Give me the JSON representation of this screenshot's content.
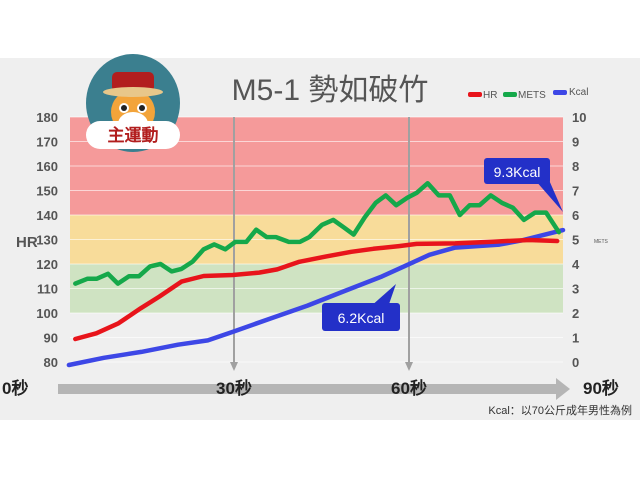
{
  "chart_data": {
    "type": "line",
    "title": "M5-1  勢如破竹",
    "legend": {
      "position": "top-right",
      "entries": [
        {
          "label": "HR",
          "color": "#e8141b"
        },
        {
          "label": "METS",
          "color": "#15a84a"
        },
        {
          "label": "Kcal",
          "color": "#3d47e6"
        }
      ]
    },
    "xaxis": {
      "range": [
        0,
        90
      ],
      "ticks": [
        {
          "value": 0,
          "label": "0秒"
        },
        {
          "value": 30,
          "label": "30秒"
        },
        {
          "value": 60,
          "label": "60秒"
        },
        {
          "value": 90,
          "label": "90秒"
        }
      ]
    },
    "yaxis_left": {
      "label": "HR",
      "range": [
        80,
        180
      ],
      "ticks": [
        "80",
        "90",
        "100",
        "110",
        "120",
        "130",
        "140",
        "150",
        "160",
        "170",
        "180"
      ]
    },
    "yaxis_right": {
      "label": "METS",
      "range": [
        0,
        10
      ],
      "ticks": [
        "0",
        "1",
        "2",
        "3",
        "4",
        "5",
        "6",
        "7",
        "8",
        "9",
        "10"
      ]
    },
    "zones": [
      {
        "from": 140,
        "to": 180,
        "color": "#f59a9a"
      },
      {
        "from": 120,
        "to": 140,
        "color": "#f8dc9a"
      },
      {
        "from": 100,
        "to": 120,
        "color": "#cfe3c2"
      }
    ],
    "grid": true,
    "series": [
      {
        "name": "HR",
        "axis": "left",
        "color": "#e8141b",
        "x": [
          2.8,
          6.4,
          10.2,
          14.0,
          17.2,
          21.0,
          24.8,
          29.8,
          34.3,
          37.4,
          41.2,
          45.7,
          50.1,
          53.9,
          58.3,
          61.3,
          67.9,
          74.3,
          80.6,
          85.4
        ],
        "y": [
          89.4,
          91.7,
          95.8,
          101.9,
          106.7,
          112.8,
          115.1,
          115.5,
          116.5,
          117.8,
          120.9,
          123.0,
          125.0,
          126.2,
          127.3,
          128.2,
          128.4,
          129.1,
          129.8,
          129.4
        ]
      },
      {
        "name": "METS",
        "axis": "right",
        "color": "#15a84a",
        "x": [
          2.8,
          4.9,
          6.5,
          8.4,
          10.1,
          12.0,
          13.7,
          15.6,
          17.4,
          19.3,
          21.0,
          22.9,
          24.8,
          26.6,
          28.5,
          30.2,
          32.1,
          33.8,
          35.6,
          37.2,
          39.4,
          41.3,
          42.9,
          45.1,
          47.0,
          48.8,
          50.5,
          52.4,
          54.3,
          56.0,
          57.8,
          59.7,
          61.3,
          63.2,
          65.1,
          67.0,
          68.7,
          70.4,
          72.1,
          74.0,
          75.9,
          77.8,
          79.7,
          81.6,
          83.5,
          85.7
        ],
        "y": [
          3.2,
          3.4,
          3.4,
          3.6,
          3.2,
          3.5,
          3.5,
          3.9,
          4.0,
          3.7,
          3.8,
          4.1,
          4.6,
          4.8,
          4.6,
          4.9,
          4.9,
          5.4,
          5.1,
          5.1,
          4.9,
          4.9,
          5.1,
          5.6,
          5.8,
          5.5,
          5.2,
          5.9,
          6.5,
          6.8,
          6.4,
          6.7,
          6.9,
          7.3,
          6.8,
          6.8,
          6.0,
          6.4,
          6.4,
          6.8,
          6.5,
          6.3,
          5.8,
          6.1,
          6.1,
          5.3
        ]
      },
      {
        "name": "Kcal",
        "axis": "none",
        "color": "#3d47e6",
        "x": [
          1.7,
          7.7,
          14.1,
          20.4,
          25.5,
          29.9,
          36.2,
          42.6,
          48.9,
          55.3,
          59.7,
          63.5,
          67.9,
          75.5,
          79.4,
          86.4
        ],
        "y": [
          0,
          0.5,
          0.9,
          1.4,
          1.7,
          2.3,
          3.2,
          4.1,
          5.1,
          6.1,
          6.9,
          7.6,
          8.1,
          8.3,
          8.6,
          9.3
        ]
      }
    ],
    "annotations": [
      {
        "text": "9.3Kcal",
        "color": "#2330c8"
      },
      {
        "text": "6.2Kcal",
        "color": "#2330c8"
      }
    ],
    "note": "Kcal：以70公斤成年男性為例"
  },
  "badge": {
    "label": "主運動"
  }
}
